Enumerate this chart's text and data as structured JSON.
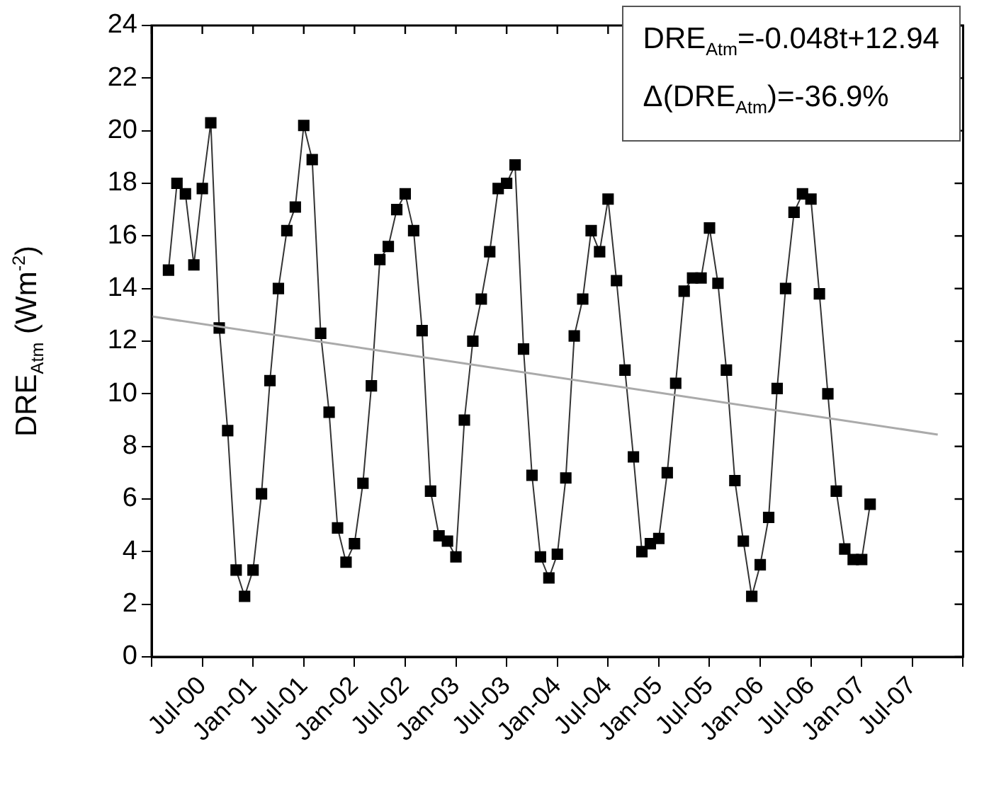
{
  "chart_data": {
    "type": "line",
    "ylabel": "DRE$_{Atm}$ (Wm$^{-2}$)",
    "marker": "square",
    "line_style": "solid",
    "grid": false,
    "xlim": [
      "2000-01",
      "2008-01"
    ],
    "ylim": [
      0,
      24
    ],
    "yticks": [
      0,
      2,
      4,
      6,
      8,
      10,
      12,
      14,
      16,
      18,
      20,
      22,
      24
    ],
    "xticks": [
      {
        "value": "2000-01",
        "label": null
      },
      {
        "value": "2000-07",
        "label": "Jul-00"
      },
      {
        "value": "2001-01",
        "label": "Jan-01"
      },
      {
        "value": "2001-07",
        "label": "Jul-01"
      },
      {
        "value": "2002-01",
        "label": "Jan-02"
      },
      {
        "value": "2002-07",
        "label": "Jul-02"
      },
      {
        "value": "2003-01",
        "label": "Jan-03"
      },
      {
        "value": "2003-07",
        "label": "Jul-03"
      },
      {
        "value": "2004-01",
        "label": "Jan-04"
      },
      {
        "value": "2004-07",
        "label": "Jul-04"
      },
      {
        "value": "2005-01",
        "label": "Jan-05"
      },
      {
        "value": "2005-07",
        "label": "Jul-05"
      },
      {
        "value": "2006-01",
        "label": "Jan-06"
      },
      {
        "value": "2006-07",
        "label": "Jul-06"
      },
      {
        "value": "2007-01",
        "label": "Jan-07"
      },
      {
        "value": "2007-07",
        "label": "Jul-07"
      },
      {
        "value": "2008-01",
        "label": null
      }
    ],
    "annotations": [
      "DRE$_{Atm}$=-0.048t+12.94",
      "Δ(DRE$_{Atm}$)=-36.9%"
    ],
    "x": [
      "2000-03",
      "2000-04",
      "2000-05",
      "2000-06",
      "2000-07",
      "2000-08",
      "2000-09",
      "2000-10",
      "2000-11",
      "2000-12",
      "2001-01",
      "2001-02",
      "2001-03",
      "2001-04",
      "2001-05",
      "2001-06",
      "2001-07",
      "2001-08",
      "2001-09",
      "2001-10",
      "2001-11",
      "2001-12",
      "2002-01",
      "2002-02",
      "2002-03",
      "2002-04",
      "2002-05",
      "2002-06",
      "2002-07",
      "2002-08",
      "2002-09",
      "2002-10",
      "2002-11",
      "2002-12",
      "2003-01",
      "2003-02",
      "2003-03",
      "2003-04",
      "2003-05",
      "2003-06",
      "2003-07",
      "2003-08",
      "2003-09",
      "2003-10",
      "2003-11",
      "2003-12",
      "2004-01",
      "2004-02",
      "2004-03",
      "2004-04",
      "2004-05",
      "2004-06",
      "2004-07",
      "2004-08",
      "2004-09",
      "2004-10",
      "2004-11",
      "2004-12",
      "2005-01",
      "2005-02",
      "2005-03",
      "2005-04",
      "2005-05",
      "2005-06",
      "2005-07",
      "2005-08",
      "2005-09",
      "2005-10",
      "2005-11",
      "2005-12",
      "2006-01",
      "2006-02",
      "2006-03",
      "2006-04",
      "2006-05",
      "2006-06",
      "2006-07",
      "2006-08",
      "2006-09",
      "2006-10",
      "2006-11",
      "2006-12",
      "2007-01",
      "2007-02"
    ],
    "series": [
      {
        "color": "#000000",
        "values": [
          14.7,
          18.0,
          17.6,
          14.9,
          17.8,
          20.3,
          12.5,
          8.6,
          3.3,
          2.3,
          3.3,
          6.2,
          10.5,
          14.0,
          16.2,
          17.1,
          20.2,
          18.9,
          12.3,
          9.3,
          4.9,
          3.6,
          4.3,
          6.6,
          10.3,
          15.1,
          15.6,
          17.0,
          17.6,
          16.2,
          12.4,
          6.3,
          4.6,
          4.4,
          3.8,
          9.0,
          12.0,
          13.6,
          15.4,
          17.8,
          18.0,
          18.7,
          11.7,
          6.9,
          3.8,
          3.0,
          3.9,
          6.8,
          12.2,
          13.6,
          16.2,
          15.4,
          17.4,
          14.3,
          10.9,
          7.6,
          4.0,
          4.3,
          4.5,
          7.0,
          10.4,
          13.9,
          14.4,
          14.4,
          16.3,
          14.2,
          10.9,
          6.7,
          4.4,
          2.3,
          3.5,
          5.3,
          10.2,
          14.0,
          16.9,
          17.6,
          17.4,
          13.8,
          10.0,
          6.3,
          4.1,
          3.7,
          3.7,
          5.8
        ]
      },
      {
        "type": "line",
        "marker": "none",
        "color": "#aaaaaa",
        "x": [
          "2000-01",
          "2007-10"
        ],
        "values": [
          12.94,
          8.45
        ]
      }
    ]
  }
}
